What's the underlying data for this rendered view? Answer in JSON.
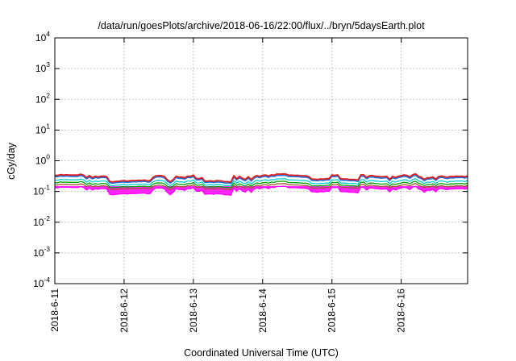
{
  "chart_data": {
    "type": "line",
    "title": "/data/run/goesPlots/archive/2018-06-16/22:00/flux/../bryn/5daysEarth.plot",
    "xlabel": "Coordinated Universal Time (UTC)",
    "ylabel": "cGy/day",
    "x_range": [
      "2018-06-11T00:00",
      "2018-06-16T23:00"
    ],
    "x_ticks": [
      "2018-6-11",
      "2018-6-12",
      "2018-6-13",
      "2018-6-14",
      "2018-6-15",
      "2018-6-16"
    ],
    "y_scale": "log",
    "ylim": [
      0.0001,
      10000
    ],
    "y_ticks": [
      {
        "base": "10",
        "exp": "-4"
      },
      {
        "base": "10",
        "exp": "-3"
      },
      {
        "base": "10",
        "exp": "-2"
      },
      {
        "base": "10",
        "exp": "-1"
      },
      {
        "base": "10",
        "exp": "0"
      },
      {
        "base": "10",
        "exp": "1"
      },
      {
        "base": "10",
        "exp": "2"
      },
      {
        "base": "10",
        "exp": "3"
      },
      {
        "base": "10",
        "exp": "4"
      }
    ],
    "grid": true,
    "series": [
      {
        "color": "#ff00ff",
        "fill_min": true,
        "values_approx": {
          "typical": 0.13,
          "min": 0.045,
          "max": 0.18
        }
      },
      {
        "color": "#a0522d",
        "values_approx": {
          "typical": 0.16,
          "min": 0.09,
          "max": 0.2
        }
      },
      {
        "color": "#00a000",
        "values_approx": {
          "typical": 0.19,
          "min": 0.1,
          "max": 0.24
        }
      },
      {
        "color": "#00ced1",
        "values_approx": {
          "typical": 0.23,
          "min": 0.11,
          "max": 0.3
        }
      },
      {
        "color": "#1f6fe0",
        "values_approx": {
          "typical": 0.3,
          "min": 0.12,
          "max": 0.42
        }
      },
      {
        "color": "#e02020",
        "values_approx": {
          "typical": 0.33,
          "min": 0.13,
          "max": 0.48
        }
      }
    ]
  }
}
